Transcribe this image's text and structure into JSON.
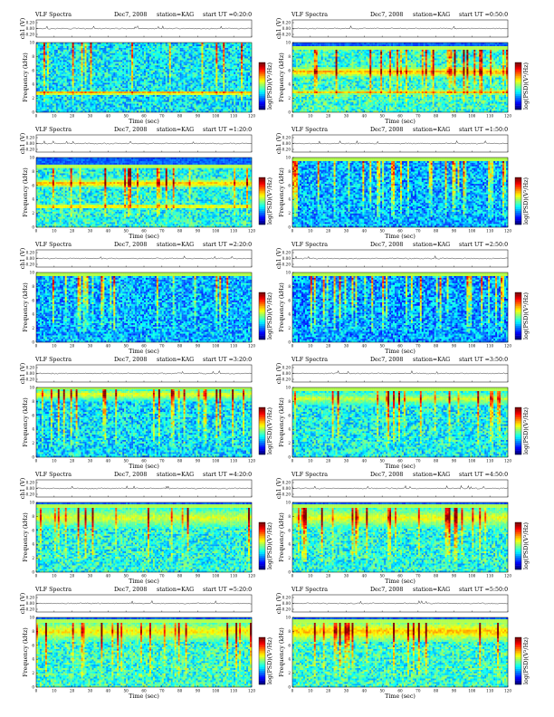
{
  "figure": {
    "header": {
      "title": "VLF Spectra",
      "date": "Dec7, 2008",
      "station": "station=KAG"
    },
    "colors": {
      "colormap": [
        "#00007f",
        "#0000ff",
        "#007fff",
        "#00ffff",
        "#7fff7f",
        "#ffff00",
        "#ff7f00",
        "#ff0000",
        "#7f0000"
      ]
    }
  },
  "chart_data": [
    {
      "type": "heatmap",
      "title": "VLF Spectra",
      "date": "Dec7, 2008",
      "station": "station=KAG",
      "start_label": "start UT =0:20:0",
      "signal_ylabel": "ch1 (V)",
      "signal_yticks": [
        "0.20",
        "0.00",
        "-0.20"
      ],
      "xlabel": "Time (sec)",
      "xlim": [
        0,
        120
      ],
      "xticks": [
        "0",
        "10",
        "20",
        "30",
        "40",
        "50",
        "60",
        "70",
        "80",
        "90",
        "100",
        "110",
        "120"
      ],
      "ylabel": "Frequency (kHz)",
      "ylim": [
        0,
        10
      ],
      "yticks": [
        "0",
        "2",
        "4",
        "6",
        "8",
        "10"
      ],
      "colorbar_label": "log(PSD)(V²/Hz)",
      "bands_khz": [
        {
          "center": 2.8,
          "width": 0.25,
          "level": 0.8
        }
      ],
      "burst_density": 0.8,
      "burst_top_khz": 10.0,
      "base_level": 0.36
    },
    {
      "type": "heatmap",
      "title": "VLF Spectra",
      "date": "Dec7, 2008",
      "station": "station=KAG",
      "start_label": "start UT =0:50:0",
      "signal_ylabel": "ch1 (V)",
      "signal_yticks": [
        "0.20",
        "0.00",
        "-0.20"
      ],
      "xlabel": "Time (sec)",
      "xlim": [
        0,
        120
      ],
      "xticks": [
        "0",
        "10",
        "20",
        "30",
        "40",
        "50",
        "60",
        "70",
        "80",
        "90",
        "100",
        "110",
        "120"
      ],
      "ylabel": "Frequency (kHz)",
      "ylim": [
        0,
        10
      ],
      "yticks": [
        "0",
        "2",
        "4",
        "6",
        "8",
        "10"
      ],
      "colorbar_label": "log(PSD)(V²/Hz)",
      "bands_khz": [
        {
          "center": 5.8,
          "width": 0.7,
          "level": 0.72
        },
        {
          "center": 2.9,
          "width": 0.35,
          "level": 0.7
        }
      ],
      "burst_density": 1.0,
      "burst_top_khz": 9.0,
      "base_level": 0.42
    },
    {
      "type": "heatmap",
      "title": "VLF Spectra",
      "date": "Dec7, 2008",
      "station": "station=KAG",
      "start_label": "start UT =1:20:0",
      "signal_ylabel": "ch1 (V)",
      "signal_yticks": [
        "0.20",
        "0.00",
        "-0.20"
      ],
      "xlabel": "Time (sec)",
      "xlim": [
        0,
        120
      ],
      "xticks": [
        "0",
        "10",
        "20",
        "30",
        "40",
        "50",
        "60",
        "70",
        "80",
        "90",
        "100",
        "110",
        "120"
      ],
      "ylabel": "Frequency (kHz)",
      "ylim": [
        0,
        10
      ],
      "yticks": [
        "0",
        "2",
        "4",
        "6",
        "8",
        "10"
      ],
      "colorbar_label": "log(PSD)(V²/Hz)",
      "bands_khz": [
        {
          "center": 6.3,
          "width": 0.6,
          "level": 0.72
        },
        {
          "center": 3.0,
          "width": 0.25,
          "level": 0.75
        }
      ],
      "burst_density": 0.6,
      "burst_top_khz": 8.5,
      "base_level": 0.4
    },
    {
      "type": "heatmap",
      "title": "VLF Spectra",
      "date": "Dec7, 2008",
      "station": "station=KAG",
      "start_label": "start UT =1:50:0",
      "signal_ylabel": "ch1 (V)",
      "signal_yticks": [
        "0.20",
        "0.00",
        "-0.20"
      ],
      "xlabel": "Time (sec)",
      "xlim": [
        0,
        120
      ],
      "xticks": [
        "0",
        "10",
        "20",
        "30",
        "40",
        "50",
        "60",
        "70",
        "80",
        "90",
        "100",
        "110",
        "120"
      ],
      "ylabel": "Frequency (kHz)",
      "ylim": [
        0,
        10
      ],
      "yticks": [
        "0",
        "2",
        "4",
        "6",
        "8",
        "10"
      ],
      "colorbar_label": "log(PSD)(V²/Hz)",
      "bands_khz": [],
      "burst_density": 0.9,
      "burst_top_khz": 9.5,
      "base_level": 0.3
    },
    {
      "type": "heatmap",
      "title": "VLF Spectra",
      "date": "Dec7, 2008",
      "station": "station=KAG",
      "start_label": "start UT =2:20:0",
      "signal_ylabel": "ch1 (V)",
      "signal_yticks": [
        "0.20",
        "0.00",
        "-0.20"
      ],
      "xlabel": "Time (sec)",
      "xlim": [
        0,
        120
      ],
      "xticks": [
        "0",
        "10",
        "20",
        "30",
        "40",
        "50",
        "60",
        "70",
        "80",
        "90",
        "100",
        "110",
        "120"
      ],
      "ylabel": "Frequency (kHz)",
      "ylim": [
        0,
        10
      ],
      "yticks": [
        "0",
        "2",
        "4",
        "6",
        "8",
        "10"
      ],
      "colorbar_label": "log(PSD)(V²/Hz)",
      "bands_khz": [],
      "burst_density": 0.8,
      "burst_top_khz": 9.5,
      "base_level": 0.3
    },
    {
      "type": "heatmap",
      "title": "VLF Spectra",
      "date": "Dec7, 2008",
      "station": "station=KAG",
      "start_label": "start UT =2:50:0",
      "signal_ylabel": "ch1 (V)",
      "signal_yticks": [
        "0.20",
        "0.00",
        "-0.20"
      ],
      "xlabel": "Time (sec)",
      "xlim": [
        0,
        120
      ],
      "xticks": [
        "0",
        "10",
        "20",
        "30",
        "40",
        "50",
        "60",
        "70",
        "80",
        "90",
        "100",
        "110",
        "120"
      ],
      "ylabel": "Frequency (kHz)",
      "ylim": [
        0,
        10
      ],
      "yticks": [
        "0",
        "2",
        "4",
        "6",
        "8",
        "10"
      ],
      "colorbar_label": "log(PSD)(V²/Hz)",
      "bands_khz": [],
      "burst_density": 0.9,
      "burst_top_khz": 9.5,
      "base_level": 0.28
    },
    {
      "type": "heatmap",
      "title": "VLF Spectra",
      "date": "Dec7, 2008",
      "station": "station=KAG",
      "start_label": "start UT =3:20:0",
      "signal_ylabel": "ch1 (V)",
      "signal_yticks": [
        "0.20",
        "0.00",
        "-0.20"
      ],
      "xlabel": "Time (sec)",
      "xlim": [
        0,
        120
      ],
      "xticks": [
        "0",
        "10",
        "20",
        "30",
        "40",
        "50",
        "60",
        "70",
        "80",
        "90",
        "100",
        "110",
        "120"
      ],
      "ylabel": "Frequency (kHz)",
      "ylim": [
        0,
        10
      ],
      "yticks": [
        "0",
        "2",
        "4",
        "6",
        "8",
        "10"
      ],
      "colorbar_label": "log(PSD)(V²/Hz)",
      "bands_khz": [
        {
          "center": 9.0,
          "width": 0.9,
          "level": 0.62
        }
      ],
      "burst_density": 1.0,
      "burst_top_khz": 9.8,
      "base_level": 0.35
    },
    {
      "type": "heatmap",
      "title": "VLF Spectra",
      "date": "Dec7, 2008",
      "station": "station=KAG",
      "start_label": "start UT =3:50:0",
      "signal_ylabel": "ch1 (V)",
      "signal_yticks": [
        "0.20",
        "0.00",
        "-0.20"
      ],
      "xlabel": "Time (sec)",
      "xlim": [
        0,
        120
      ],
      "xticks": [
        "0",
        "10",
        "20",
        "30",
        "40",
        "50",
        "60",
        "70",
        "80",
        "90",
        "100",
        "110",
        "120"
      ],
      "ylabel": "Frequency (kHz)",
      "ylim": [
        0,
        10
      ],
      "yticks": [
        "0",
        "2",
        "4",
        "6",
        "8",
        "10"
      ],
      "colorbar_label": "log(PSD)(V²/Hz)",
      "bands_khz": [
        {
          "center": 8.4,
          "width": 1.0,
          "level": 0.58
        }
      ],
      "burst_density": 0.8,
      "burst_top_khz": 9.6,
      "base_level": 0.38
    },
    {
      "type": "heatmap",
      "title": "VLF Spectra",
      "date": "Dec7, 2008",
      "station": "station=KAG",
      "start_label": "start UT =4:20:0",
      "signal_ylabel": "ch1 (V)",
      "signal_yticks": [
        "0.20",
        "0.00",
        "-0.20"
      ],
      "xlabel": "Time (sec)",
      "xlim": [
        0,
        120
      ],
      "xticks": [
        "0",
        "10",
        "20",
        "30",
        "40",
        "50",
        "60",
        "70",
        "80",
        "90",
        "100",
        "110",
        "120"
      ],
      "ylabel": "Frequency (kHz)",
      "ylim": [
        0,
        10
      ],
      "yticks": [
        "0",
        "2",
        "4",
        "6",
        "8",
        "10"
      ],
      "colorbar_label": "log(PSD)(V²/Hz)",
      "bands_khz": [
        {
          "center": 7.8,
          "width": 1.6,
          "level": 0.6
        }
      ],
      "burst_density": 0.7,
      "burst_top_khz": 9.3,
      "base_level": 0.4
    },
    {
      "type": "heatmap",
      "title": "VLF Spectra",
      "date": "Dec7, 2008",
      "station": "station=KAG",
      "start_label": "start UT =4:50:0",
      "signal_ylabel": "ch1 (V)",
      "signal_yticks": [
        "0.20",
        "0.00",
        "-0.20"
      ],
      "xlabel": "Time (sec)",
      "xlim": [
        0,
        120
      ],
      "xticks": [
        "0",
        "10",
        "20",
        "30",
        "40",
        "50",
        "60",
        "70",
        "80",
        "90",
        "100",
        "110",
        "120"
      ],
      "ylabel": "Frequency (kHz)",
      "ylim": [
        0,
        10
      ],
      "yticks": [
        "0",
        "2",
        "4",
        "6",
        "8",
        "10"
      ],
      "colorbar_label": "log(PSD)(V²/Hz)",
      "bands_khz": [
        {
          "center": 7.8,
          "width": 1.6,
          "level": 0.62
        }
      ],
      "burst_density": 0.8,
      "burst_top_khz": 9.3,
      "base_level": 0.4
    },
    {
      "type": "heatmap",
      "title": "VLF Spectra",
      "date": "Dec7, 2008",
      "station": "station=KAG",
      "start_label": "start UT =5:20:0",
      "signal_ylabel": "ch1 (V)",
      "signal_yticks": [
        "0.20",
        "0.00",
        "-0.20"
      ],
      "xlabel": "Time (sec)",
      "xlim": [
        0,
        120
      ],
      "xticks": [
        "0",
        "10",
        "20",
        "30",
        "40",
        "50",
        "60",
        "70",
        "80",
        "90",
        "100",
        "110",
        "120"
      ],
      "ylabel": "Frequency (kHz)",
      "ylim": [
        0,
        10
      ],
      "yticks": [
        "0",
        "2",
        "4",
        "6",
        "8",
        "10"
      ],
      "colorbar_label": "log(PSD)(V²/Hz)",
      "bands_khz": [
        {
          "center": 8.0,
          "width": 1.5,
          "level": 0.65
        }
      ],
      "burst_density": 0.8,
      "burst_top_khz": 9.3,
      "base_level": 0.42
    },
    {
      "type": "heatmap",
      "title": "VLF Spectra",
      "date": "Dec7, 2008",
      "station": "station=KAG",
      "start_label": "start UT =5:50:0",
      "signal_ylabel": "ch1 (V)",
      "signal_yticks": [
        "0.20",
        "0.00",
        "-0.20"
      ],
      "xlabel": "Time (sec)",
      "xlim": [
        0,
        120
      ],
      "xticks": [
        "0",
        "10",
        "20",
        "30",
        "40",
        "50",
        "60",
        "70",
        "80",
        "90",
        "100",
        "110",
        "120"
      ],
      "ylabel": "Frequency (kHz)",
      "ylim": [
        0,
        10
      ],
      "yticks": [
        "0",
        "2",
        "4",
        "6",
        "8",
        "10"
      ],
      "colorbar_label": "log(PSD)(V²/Hz)",
      "bands_khz": [
        {
          "center": 8.0,
          "width": 1.6,
          "level": 0.7
        }
      ],
      "burst_density": 0.9,
      "burst_top_khz": 9.3,
      "base_level": 0.42
    }
  ]
}
